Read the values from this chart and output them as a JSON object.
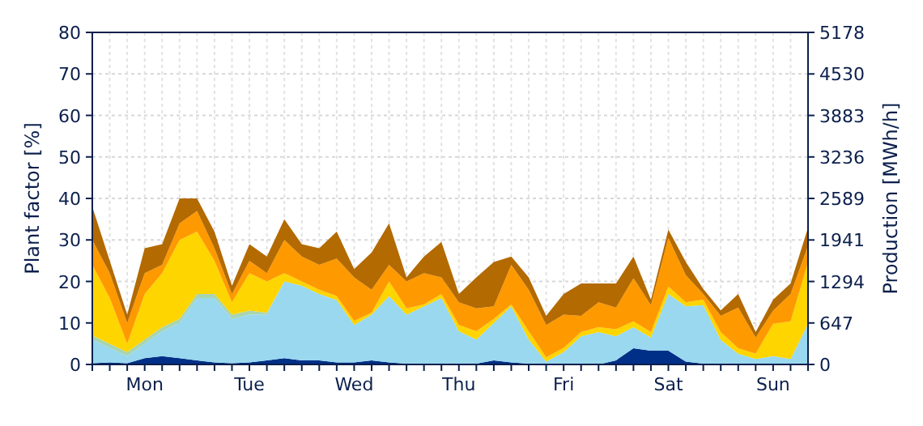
{
  "chart_data": {
    "type": "area",
    "stacked": true,
    "ylabel": "Plant factor [%]",
    "y2label": "Production [MWh/h]",
    "categories": [
      null,
      null,
      null,
      "Mon",
      null,
      null,
      null,
      null,
      null,
      "Tue",
      null,
      null,
      null,
      null,
      null,
      "Wed",
      null,
      null,
      null,
      null,
      null,
      "Thu",
      null,
      null,
      null,
      null,
      null,
      "Fri",
      null,
      null,
      null,
      null,
      null,
      "Sat",
      null,
      null,
      null,
      null,
      null,
      "Sun",
      null,
      null
    ],
    "ylim": [
      0,
      80
    ],
    "yticks": [
      0,
      10,
      20,
      30,
      40,
      50,
      60,
      70,
      80
    ],
    "y2lim": [
      0,
      5178
    ],
    "y2ticks": [
      0,
      647,
      1294,
      1941,
      2589,
      3236,
      3883,
      4530,
      5178
    ],
    "grid": true,
    "series": [
      {
        "color": "#002f87",
        "values": [
          0.3,
          0.5,
          0.3,
          1.5,
          2,
          1.5,
          1,
          0.5,
          0.3,
          0.5,
          1,
          1.5,
          1,
          1,
          0.5,
          0.5,
          1,
          0.5,
          0.2,
          0.2,
          0.2,
          0.2,
          0.2,
          1,
          0.5,
          0.2,
          0,
          0,
          0,
          0,
          1,
          3.9,
          3.3,
          3.3,
          0.7,
          0.2,
          0,
          0,
          0,
          0,
          0,
          0.3
        ]
      },
      {
        "color": "#99d8ef",
        "values": [
          5.7,
          3.5,
          1.7,
          3.5,
          6,
          8.5,
          15,
          15.5,
          10.7,
          11.5,
          11,
          18.5,
          18,
          16,
          15,
          9,
          11,
          16,
          11.8,
          13.8,
          15.8,
          7.8,
          5.8,
          9,
          13.5,
          5.8,
          0.7,
          3,
          6.8,
          7.8,
          5.8,
          5.1,
          3.2,
          13.7,
          13.3,
          14.1,
          5.9,
          2.6,
          1.3,
          2,
          1.3,
          9.5
        ]
      },
      {
        "color": "#a8d5b0",
        "values": [
          1,
          1,
          1,
          1,
          1,
          1,
          1,
          1,
          1,
          1,
          0.5,
          0,
          0,
          0,
          0,
          0,
          0,
          0,
          0,
          0,
          0,
          0,
          0,
          0,
          0,
          0,
          0,
          0,
          0,
          0,
          0,
          0,
          0,
          0,
          0,
          0,
          0,
          0,
          0,
          0,
          0,
          0
        ]
      },
      {
        "color": "#ffd500",
        "values": [
          17,
          11,
          2,
          11,
          13,
          19,
          15,
          8,
          3,
          9,
          7.5,
          2,
          1,
          1,
          1,
          1,
          0.5,
          3.5,
          1.5,
          0.5,
          1,
          1.5,
          2,
          1,
          0.5,
          2,
          1,
          1,
          1,
          1.2,
          1.7,
          1.4,
          1.3,
          1.8,
          1,
          1.3,
          1.9,
          1.3,
          1.3,
          7.8,
          9.1,
          14.9
        ]
      },
      {
        "color": "#ff9900",
        "values": [
          6,
          6,
          5,
          5,
          2,
          4,
          5,
          3,
          2,
          3,
          2,
          8,
          6,
          6,
          9,
          10.5,
          5.5,
          4,
          6.5,
          7.5,
          4,
          5.5,
          5.5,
          3,
          9.5,
          10,
          7.8,
          8,
          3.9,
          6,
          5.2,
          10.4,
          6.5,
          11.7,
          6.5,
          1.4,
          3.9,
          9.8,
          3.9,
          3.2,
          6.6,
          3.9
        ]
      },
      {
        "color": "#b36a00",
        "values": [
          8,
          3,
          2,
          6,
          5,
          6,
          3,
          4,
          2,
          4,
          4,
          5,
          3,
          4,
          6.5,
          2,
          9,
          10,
          1,
          4,
          8.5,
          2,
          7.5,
          10.7,
          2,
          3,
          2.2,
          5,
          7.8,
          4.5,
          5.8,
          5.2,
          1.3,
          2,
          3.2,
          1.2,
          1.3,
          3.3,
          1.3,
          2.6,
          2.5,
          4.4
        ]
      }
    ]
  }
}
